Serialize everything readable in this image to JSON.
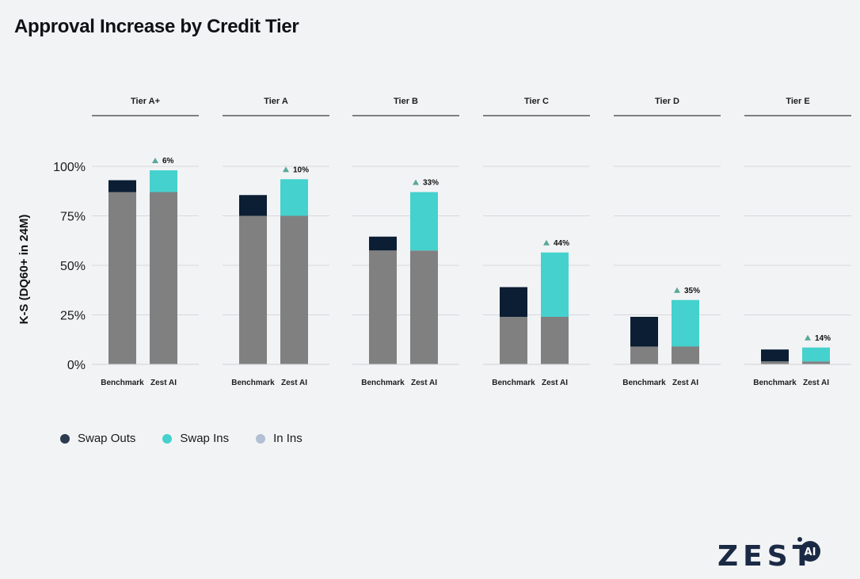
{
  "title": "Approval Increase by Credit Tier",
  "logo_text": "ZEST",
  "logo_badge": "AI",
  "colors": {
    "base": "#808080",
    "swap_outs": "#0b1e33",
    "swap_ins": "#45d1cd",
    "in_ins": "#aab8cc",
    "arrow": "#5aa89a",
    "logo": "#1b2a44"
  },
  "legend": [
    {
      "label": "Swap Outs",
      "color": "#2b3a4f"
    },
    {
      "label": "Swap Ins",
      "color": "#45d1cd"
    },
    {
      "label": "In Ins",
      "color": "#b3bfd2"
    }
  ],
  "chart_data": {
    "type": "bar",
    "ylabel": "K-S (DQ60+ in 24M)",
    "ylim": [
      0,
      100
    ],
    "yticks": [
      "0%",
      "25%",
      "50%",
      "75%",
      "100%"
    ],
    "bar_categories": [
      "Benchmark",
      "Zest AI"
    ],
    "panels": [
      {
        "tier": "Tier A+",
        "benchmark": {
          "base": 87,
          "swap_outs": 6
        },
        "zest": {
          "base": 87,
          "swap_ins": 11
        },
        "increase": "6%"
      },
      {
        "tier": "Tier A",
        "benchmark": {
          "base": 75,
          "swap_outs": 10.5
        },
        "zest": {
          "base": 75,
          "swap_ins": 18.5
        },
        "increase": "10%"
      },
      {
        "tier": "Tier B",
        "benchmark": {
          "base": 57.5,
          "swap_outs": 7
        },
        "zest": {
          "base": 57.5,
          "swap_ins": 29.5
        },
        "increase": "33%"
      },
      {
        "tier": "Tier C",
        "benchmark": {
          "base": 24,
          "swap_outs": 15
        },
        "zest": {
          "base": 24,
          "swap_ins": 32.5
        },
        "increase": "44%"
      },
      {
        "tier": "Tier D",
        "benchmark": {
          "base": 9,
          "swap_outs": 15
        },
        "zest": {
          "base": 9,
          "swap_ins": 23.5
        },
        "increase": "35%"
      },
      {
        "tier": "Tier E",
        "benchmark": {
          "base": 1.5,
          "swap_outs": 6
        },
        "zest": {
          "base": 1.5,
          "swap_ins": 7
        },
        "increase": "14%"
      }
    ]
  }
}
